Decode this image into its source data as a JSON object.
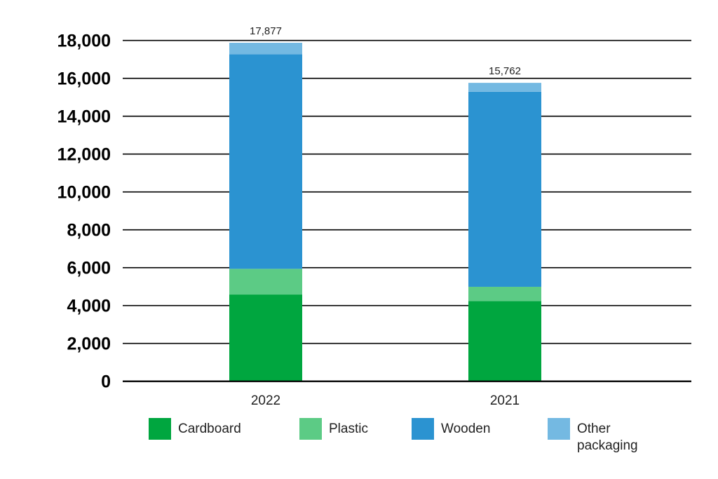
{
  "chart_data": {
    "type": "bar",
    "stacked": true,
    "categories": [
      "2022",
      "2021"
    ],
    "series": [
      {
        "name": "Cardboard",
        "color": "#00a63f",
        "values": [
          4580,
          4240
        ]
      },
      {
        "name": "Plastic",
        "color": "#5ccb85",
        "values": [
          1360,
          750
        ]
      },
      {
        "name": "Wooden",
        "color": "#2b93d1",
        "values": [
          11330,
          10300
        ]
      },
      {
        "name": "Other packaging",
        "color": "#74b9e2",
        "values": [
          607,
          472
        ]
      }
    ],
    "totals": [
      "17,877",
      "15,762"
    ],
    "ylim": [
      0,
      18000
    ],
    "yticks": [
      0,
      2000,
      4000,
      6000,
      8000,
      10000,
      12000,
      14000,
      16000,
      18000
    ],
    "ytick_labels": [
      "0",
      "2,000",
      "4,000",
      "6,000",
      "8,000",
      "10,000",
      "12,000",
      "14,000",
      "16,000",
      "18,000"
    ],
    "grid": true,
    "legend": "bottom",
    "title": "",
    "xlabel": "",
    "ylabel": ""
  }
}
